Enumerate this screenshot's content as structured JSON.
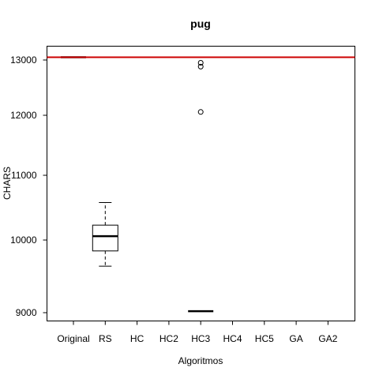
{
  "chart_data": {
    "type": "box",
    "title": "pug",
    "xlabel": "Algoritmos",
    "ylabel": "CHARS",
    "categories": [
      "Original",
      "RS",
      "HC",
      "HC2",
      "HC3",
      "HC4",
      "HC5",
      "GA",
      "GA2"
    ],
    "yticks": [
      "9000",
      "10000",
      "11000",
      "12000",
      "13000"
    ],
    "ylim": [
      8880,
      13280
    ],
    "reference_line": {
      "value": 13050,
      "color": "#cc0000"
    },
    "boxes": [
      {
        "category": "Original",
        "median": 13050,
        "q1": 13050,
        "q3": 13050,
        "whisker_low": 13050,
        "whisker_high": 13050,
        "outliers": []
      },
      {
        "category": "RS",
        "median": 10060,
        "q1": 9850,
        "q3": 10230,
        "whisker_low": 9640,
        "whisker_high": 10580,
        "outliers": []
      },
      {
        "category": "HC3",
        "median": 9020,
        "q1": 9020,
        "q3": 9020,
        "whisker_low": 9020,
        "whisker_high": 9020,
        "outliers": [
          12060,
          12880,
          12950
        ]
      }
    ]
  }
}
